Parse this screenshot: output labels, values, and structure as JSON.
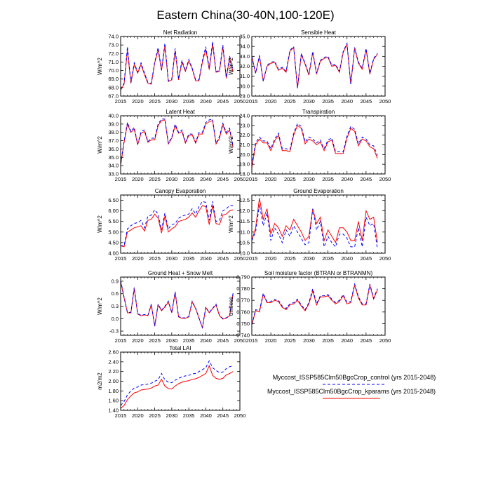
{
  "title": "Eastern China(30-40N,100-120E)",
  "legend": {
    "items": [
      {
        "label": "Myccost_ISSP585Clm50BgcCrop_control (yrs 2015-2048)",
        "color": "#0000ff",
        "dash": true
      },
      {
        "label": "Myccost_ISSP585Clm50BgcCrop_kparams (yrs 2015-2048)",
        "color": "#ff0000",
        "dash": false
      }
    ]
  },
  "chart_data": [
    {
      "type": "line",
      "title": "Net Radiation",
      "ylabel": "W/m^2",
      "xlim": [
        2015,
        2050
      ],
      "ylim": [
        67.0,
        74.0
      ],
      "xticks": [
        2015,
        2020,
        2025,
        2030,
        2035,
        2040,
        2045,
        2050
      ],
      "yticks": [
        "67.0",
        "68.0",
        "69.0",
        "70.0",
        "71.0",
        "72.0",
        "73.0",
        "74.0"
      ],
      "x_start": 2015,
      "series": [
        {
          "name": "Myccost_ISSP585Clm50BgcCrop_control",
          "values": [
            67.8,
            68.5,
            72.8,
            68.6,
            70.9,
            69.8,
            70.9,
            69.7,
            68.6,
            68.5,
            71.0,
            72.7,
            70.1,
            73.2,
            68.8,
            69.0,
            72.6,
            69.0,
            71.2,
            70.0,
            71.3,
            70.3,
            68.9,
            68.9,
            71.2,
            72.8,
            70.3,
            73.4,
            69.9,
            70.0,
            73.0,
            69.2,
            71.7,
            70.0
          ]
        },
        {
          "name": "Myccost_ISSP585Clm50BgcCrop_kparams",
          "values": [
            67.7,
            68.4,
            72.4,
            68.5,
            70.7,
            69.7,
            70.7,
            69.5,
            68.5,
            68.4,
            70.9,
            72.4,
            70.0,
            72.9,
            68.7,
            68.9,
            72.3,
            68.9,
            71.0,
            69.9,
            71.1,
            70.2,
            68.8,
            68.8,
            71.0,
            72.5,
            70.1,
            73.1,
            69.8,
            69.9,
            72.8,
            69.1,
            71.5,
            69.8
          ]
        }
      ]
    },
    {
      "type": "line",
      "title": "Sensible Heat",
      "ylabel": "W/m^2",
      "xlim": [
        2015,
        2050
      ],
      "ylim": [
        29.0,
        35.0
      ],
      "xticks": [
        2015,
        2020,
        2025,
        2030,
        2035,
        2040,
        2045,
        2050
      ],
      "yticks": [
        "29.0",
        "30.0",
        "31.0",
        "32.0",
        "33.0",
        "34.0",
        "35.0"
      ],
      "x_start": 2015,
      "series": [
        {
          "name": "Myccost_ISSP585Clm50BgcCrop_control",
          "values": [
            33.0,
            31.3,
            33.1,
            30.5,
            32.1,
            32.4,
            32.5,
            31.7,
            31.9,
            31.5,
            33.6,
            34.0,
            29.8,
            33.3,
            32.3,
            31.2,
            33.5,
            31.3,
            32.6,
            32.9,
            33.0,
            32.1,
            32.2,
            31.5,
            33.5,
            34.3,
            30.2,
            33.9,
            32.4,
            31.8,
            33.8,
            31.3,
            32.8,
            33.3
          ]
        },
        {
          "name": "Myccost_ISSP585Clm50BgcCrop_kparams",
          "values": [
            33.0,
            31.3,
            33.0,
            30.5,
            32.0,
            32.3,
            32.4,
            31.6,
            31.8,
            31.4,
            33.5,
            33.9,
            29.8,
            33.2,
            32.2,
            31.1,
            33.4,
            31.2,
            32.5,
            32.8,
            32.9,
            32.0,
            32.1,
            31.4,
            33.4,
            34.2,
            30.2,
            33.8,
            32.3,
            31.7,
            33.7,
            31.2,
            32.7,
            33.2
          ]
        }
      ]
    },
    {
      "type": "line",
      "title": "Latent Heat",
      "ylabel": "W/m^2",
      "xlim": [
        2015,
        2050
      ],
      "ylim": [
        33.0,
        40.0
      ],
      "xticks": [
        2015,
        2020,
        2025,
        2030,
        2035,
        2040,
        2045,
        2050
      ],
      "yticks": [
        "33.0",
        "34.0",
        "35.0",
        "36.0",
        "37.0",
        "38.0",
        "39.0",
        "40.0"
      ],
      "x_start": 2015,
      "series": [
        {
          "name": "Myccost_ISSP585Clm50BgcCrop_control",
          "values": [
            34.2,
            36.9,
            39.2,
            38.1,
            38.6,
            36.6,
            38.1,
            38.3,
            36.9,
            37.3,
            37.3,
            39.0,
            39.6,
            39.6,
            36.7,
            37.4,
            39.0,
            38.0,
            38.3,
            36.8,
            37.8,
            37.8,
            36.8,
            38.0,
            38.0,
            39.2,
            39.5,
            39.6,
            36.7,
            37.5,
            39.1,
            38.0,
            38.5,
            36.3
          ]
        },
        {
          "name": "Myccost_ISSP585Clm50BgcCrop_kparams",
          "values": [
            34.0,
            36.8,
            39.0,
            38.0,
            38.4,
            36.5,
            37.9,
            38.1,
            36.8,
            37.1,
            37.1,
            38.8,
            39.4,
            39.5,
            36.6,
            37.3,
            38.8,
            37.9,
            38.1,
            36.7,
            37.6,
            37.7,
            36.7,
            37.8,
            37.8,
            39.0,
            39.3,
            39.4,
            36.6,
            37.3,
            38.9,
            37.8,
            38.3,
            36.2
          ]
        }
      ]
    },
    {
      "type": "line",
      "title": "Transpiration",
      "ylabel": "W/m^2",
      "xlim": [
        2015,
        2050
      ],
      "ylim": [
        18.0,
        24.0
      ],
      "xticks": [
        2015,
        2020,
        2025,
        2030,
        2035,
        2040,
        2045,
        2050
      ],
      "yticks": [
        "18.0",
        "19.0",
        "20.0",
        "21.0",
        "22.0",
        "23.0",
        "24.0"
      ],
      "x_start": 2015,
      "series": [
        {
          "name": "Myccost_ISSP585Clm50BgcCrop_control",
          "values": [
            18.9,
            21.2,
            21.8,
            21.4,
            21.4,
            20.6,
            21.6,
            22.2,
            20.6,
            20.6,
            20.5,
            22.2,
            23.2,
            22.9,
            21.3,
            21.8,
            21.6,
            21.2,
            21.5,
            20.6,
            21.5,
            21.7,
            20.3,
            20.3,
            20.3,
            21.9,
            22.9,
            22.6,
            21.1,
            21.8,
            21.6,
            21.0,
            20.9,
            19.9
          ]
        },
        {
          "name": "Myccost_ISSP585Clm50BgcCrop_kparams",
          "values": [
            18.6,
            21.0,
            21.6,
            21.2,
            21.2,
            20.4,
            21.4,
            22.0,
            20.4,
            20.4,
            20.3,
            22.0,
            23.0,
            22.7,
            21.1,
            21.6,
            21.4,
            21.0,
            21.3,
            20.4,
            21.3,
            21.5,
            20.1,
            20.1,
            20.1,
            21.7,
            22.7,
            22.4,
            20.9,
            21.6,
            21.4,
            20.8,
            20.6,
            19.6
          ]
        }
      ]
    },
    {
      "type": "line",
      "title": "Canopy Evaporation",
      "ylabel": "W/m^2",
      "xlim": [
        2015,
        2050
      ],
      "ylim": [
        4.0,
        6.75
      ],
      "xticks": [
        2015,
        2020,
        2025,
        2030,
        2035,
        2040,
        2045,
        2050
      ],
      "yticks": [
        "4.00",
        "4.50",
        "5.00",
        "5.50",
        "6.00",
        "6.50"
      ],
      "x_start": 2015,
      "series": [
        {
          "name": "Myccost_ISSP585Clm50BgcCrop_control",
          "values": [
            4.35,
            4.35,
            5.15,
            5.3,
            5.4,
            5.45,
            5.55,
            5.2,
            5.75,
            5.8,
            6.05,
            5.85,
            5.1,
            5.9,
            5.15,
            5.35,
            5.4,
            5.65,
            5.75,
            5.8,
            5.85,
            6.1,
            5.85,
            6.2,
            6.45,
            6.4,
            5.55,
            6.45,
            5.5,
            5.55,
            6.0,
            6.1,
            6.25,
            6.25
          ]
        },
        {
          "name": "Myccost_ISSP585Clm50BgcCrop_kparams",
          "values": [
            4.35,
            4.3,
            5.0,
            5.1,
            5.2,
            5.25,
            5.3,
            5.05,
            5.55,
            5.6,
            5.85,
            5.65,
            4.95,
            5.75,
            5.0,
            5.15,
            5.25,
            5.5,
            5.55,
            5.6,
            5.7,
            5.9,
            5.7,
            6.0,
            6.25,
            6.2,
            5.35,
            6.25,
            5.4,
            5.35,
            5.8,
            5.85,
            6.0,
            6.05
          ]
        }
      ]
    },
    {
      "type": "line",
      "title": "Ground Evaporation",
      "ylabel": "W/m^2",
      "xlim": [
        2015,
        2050
      ],
      "ylim": [
        10.0,
        12.75
      ],
      "xticks": [
        2015,
        2020,
        2025,
        2030,
        2035,
        2040,
        2045,
        2050
      ],
      "yticks": [
        "10.0",
        "10.5",
        "11.0",
        "11.5",
        "12.0",
        "12.5"
      ],
      "x_start": 2015,
      "series": [
        {
          "name": "Myccost_ISSP585Clm50BgcCrop_control",
          "values": [
            10.6,
            11.0,
            12.3,
            11.3,
            11.9,
            10.6,
            11.2,
            10.9,
            10.5,
            11.1,
            10.8,
            11.3,
            11.0,
            10.7,
            10.4,
            10.5,
            12.1,
            11.1,
            11.5,
            10.3,
            10.8,
            10.5,
            10.3,
            10.9,
            10.9,
            10.7,
            10.3,
            10.3,
            11.2,
            10.3,
            11.7,
            11.3,
            11.4,
            10.2
          ]
        },
        {
          "name": "Myccost_ISSP585Clm50BgcCrop_kparams",
          "values": [
            10.6,
            11.2,
            12.6,
            11.6,
            12.1,
            10.9,
            11.4,
            11.2,
            10.8,
            11.3,
            11.1,
            11.6,
            11.3,
            11.0,
            10.6,
            10.8,
            12.1,
            11.4,
            11.7,
            10.6,
            11.1,
            10.8,
            10.5,
            11.2,
            11.2,
            11.0,
            10.6,
            10.6,
            11.5,
            10.6,
            12.0,
            11.6,
            11.7,
            10.5
          ]
        }
      ]
    },
    {
      "type": "line",
      "title": "Ground Heat + Snow Melt",
      "ylabel": "W/m^2",
      "xlim": [
        2015,
        2050
      ],
      "ylim": [
        -0.4,
        1.0
      ],
      "xticks": [
        2015,
        2020,
        2025,
        2030,
        2035,
        2040,
        2045,
        2050
      ],
      "yticks": [
        "-0.3",
        "0.0",
        "0.3",
        "0.6",
        "0.9"
      ],
      "x_start": 2015,
      "series": [
        {
          "name": "Myccost_ISSP585Clm50BgcCrop_control",
          "values": [
            0.92,
            0.52,
            0.15,
            0.15,
            0.75,
            0.12,
            0.08,
            0.1,
            0.08,
            0.35,
            -0.18,
            0.35,
            0.2,
            0.3,
            0.42,
            0.15,
            0.65,
            0.05,
            0.02,
            0.02,
            0.05,
            0.42,
            0.25,
            0.02,
            -0.22,
            0.28,
            0.15,
            0.25,
            0.35,
            0.08,
            0.0,
            0.02,
            0.08,
            0.62
          ]
        },
        {
          "name": "Myccost_ISSP585Clm50BgcCrop_kparams",
          "values": [
            0.9,
            0.5,
            0.14,
            0.14,
            0.72,
            0.11,
            0.07,
            0.09,
            0.07,
            0.33,
            -0.18,
            0.33,
            0.19,
            0.28,
            0.4,
            0.14,
            0.62,
            0.04,
            0.01,
            0.01,
            0.04,
            0.4,
            0.24,
            0.01,
            -0.22,
            0.27,
            0.14,
            0.24,
            0.33,
            0.07,
            -0.01,
            0.01,
            0.07,
            0.6
          ]
        }
      ]
    },
    {
      "type": "line",
      "title": "Soil moisture factor (BTRAN or BTRANMN)",
      "ylabel": "unitless",
      "xlim": [
        2015,
        2050
      ],
      "ylim": [
        0.74,
        0.79
      ],
      "xticks": [
        2015,
        2020,
        2025,
        2030,
        2035,
        2040,
        2045,
        2050
      ],
      "yticks": [
        "0.740",
        "0.750",
        "0.760",
        "0.770",
        "0.780",
        "0.790"
      ],
      "x_start": 2015,
      "series": [
        {
          "name": "Myccost_ISSP585Clm50BgcCrop_control",
          "values": [
            0.749,
            0.762,
            0.761,
            0.776,
            0.769,
            0.769,
            0.771,
            0.77,
            0.765,
            0.763,
            0.767,
            0.768,
            0.771,
            0.766,
            0.762,
            0.768,
            0.78,
            0.767,
            0.774,
            0.774,
            0.775,
            0.771,
            0.768,
            0.77,
            0.775,
            0.768,
            0.769,
            0.784,
            0.773,
            0.767,
            0.767,
            0.784,
            0.772,
            0.78
          ]
        },
        {
          "name": "Myccost_ISSP585Clm50BgcCrop_kparams",
          "values": [
            0.749,
            0.761,
            0.76,
            0.775,
            0.768,
            0.768,
            0.77,
            0.769,
            0.764,
            0.762,
            0.766,
            0.767,
            0.77,
            0.765,
            0.761,
            0.767,
            0.778,
            0.766,
            0.773,
            0.773,
            0.774,
            0.77,
            0.767,
            0.769,
            0.774,
            0.767,
            0.768,
            0.783,
            0.772,
            0.766,
            0.766,
            0.783,
            0.771,
            0.779
          ]
        }
      ]
    },
    {
      "type": "line",
      "title": "Total LAI",
      "ylabel": "m2/m2",
      "xlim": [
        2015,
        2050
      ],
      "ylim": [
        1.4,
        2.6
      ],
      "xticks": [
        2015,
        2020,
        2025,
        2030,
        2035,
        2040,
        2045,
        2050
      ],
      "yticks": [
        "1.40",
        "1.60",
        "1.80",
        "2.00",
        "2.20",
        "2.40",
        "2.60"
      ],
      "x_start": 2015,
      "series": [
        {
          "name": "Myccost_ISSP585Clm50BgcCrop_control",
          "values": [
            1.5,
            1.58,
            1.72,
            1.8,
            1.86,
            1.88,
            1.92,
            1.93,
            1.94,
            1.96,
            2.0,
            2.03,
            2.16,
            2.03,
            1.98,
            1.97,
            2.02,
            2.06,
            2.09,
            2.11,
            2.12,
            2.15,
            2.16,
            2.2,
            2.24,
            2.28,
            2.42,
            2.28,
            2.22,
            2.18,
            2.19,
            2.26,
            2.3,
            2.32
          ]
        },
        {
          "name": "Myccost_ISSP585Clm50BgcCrop_kparams",
          "values": [
            1.44,
            1.5,
            1.62,
            1.7,
            1.76,
            1.78,
            1.82,
            1.83,
            1.84,
            1.86,
            1.9,
            1.92,
            2.04,
            1.9,
            1.85,
            1.84,
            1.9,
            1.95,
            1.98,
            2.0,
            2.01,
            2.04,
            2.05,
            2.08,
            2.12,
            2.16,
            2.32,
            2.12,
            2.06,
            2.04,
            2.06,
            2.13,
            2.16,
            2.2
          ]
        }
      ]
    }
  ]
}
